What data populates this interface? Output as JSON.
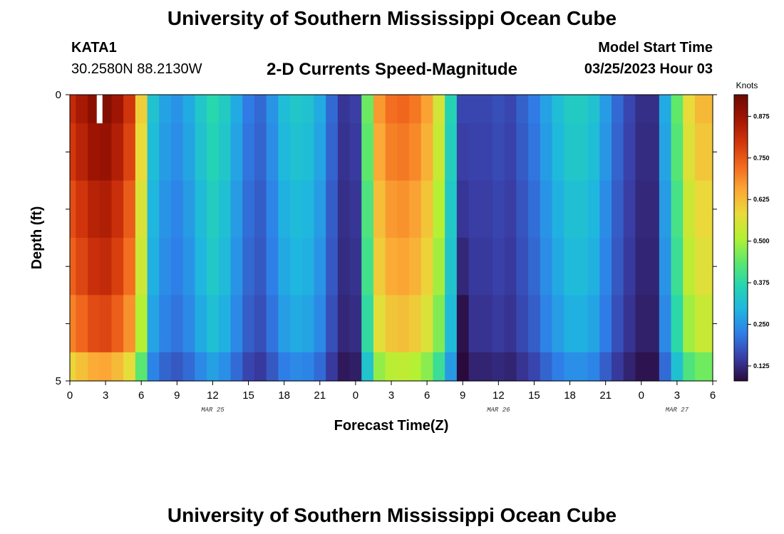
{
  "page": {
    "title": "University of Southern Mississippi Ocean Cube",
    "station_id": "KATA1",
    "coordinates": "30.2580N  88.2130W",
    "start_label": "Model Start Time",
    "start_value": "03/25/2023 Hour 03",
    "footer_title": "University of Southern Mississippi Ocean Cube"
  },
  "chart_data": {
    "type": "heatmap",
    "title": "2-D Currents Speed-Magnitude",
    "xlabel": "Forecast Time(Z)",
    "ylabel": "Depth (ft)",
    "x_range_hours": [
      0,
      54
    ],
    "y_range": [
      0,
      5
    ],
    "y_ticks": [
      "0",
      "5"
    ],
    "x_tick_labels": [
      "0",
      "3",
      "6",
      "9",
      "12",
      "15",
      "18",
      "21",
      "0",
      "3",
      "6",
      "9",
      "12",
      "15",
      "18",
      "21",
      "0",
      "3",
      "6"
    ],
    "date_labels": [
      {
        "text": "MAR 25",
        "hour": 12
      },
      {
        "text": "MAR 26",
        "hour": 36
      },
      {
        "text": "MAR 27",
        "hour": 51
      }
    ],
    "colorbar": {
      "unit": "Knots",
      "min": 0.08,
      "max": 0.94,
      "ticks": [
        "0.125",
        "0.250",
        "0.375",
        "0.500",
        "0.625",
        "0.750",
        "0.875"
      ],
      "colors": [
        "#2a0a3c",
        "#3a3fa8",
        "#2f7ee8",
        "#1fb6e0",
        "#25d6b0",
        "#5ee86b",
        "#b4f034",
        "#eadb3a",
        "#fba836",
        "#f26a1e",
        "#d2350c",
        "#a01503",
        "#6e0a02"
      ]
    },
    "depth_layers": [
      0.5,
      1.5,
      2.5,
      3.5,
      4.5,
      5.0
    ],
    "time_hours": [
      0,
      1,
      2,
      3,
      4,
      5,
      6,
      7,
      8,
      9,
      10,
      11,
      12,
      13,
      14,
      15,
      16,
      17,
      18,
      19,
      20,
      21,
      22,
      23,
      24,
      25,
      26,
      27,
      28,
      29,
      30,
      31,
      32,
      33,
      34,
      35,
      36,
      37,
      38,
      39,
      40,
      41,
      42,
      43,
      44,
      45,
      46,
      47,
      48,
      49,
      50,
      51,
      52,
      53,
      54
    ],
    "speed_profile": [
      0.82,
      0.86,
      0.9,
      0.91,
      0.87,
      0.8,
      0.6,
      0.32,
      0.27,
      0.25,
      0.28,
      0.33,
      0.37,
      0.34,
      0.28,
      0.22,
      0.2,
      0.25,
      0.31,
      0.33,
      0.32,
      0.28,
      0.2,
      0.14,
      0.15,
      0.45,
      0.67,
      0.72,
      0.73,
      0.71,
      0.66,
      0.55,
      0.36,
      0.2,
      0.16,
      0.16,
      0.17,
      0.16,
      0.19,
      0.22,
      0.27,
      0.31,
      0.34,
      0.34,
      0.32,
      0.26,
      0.2,
      0.16,
      0.13,
      0.13,
      0.28,
      0.44,
      0.58,
      0.63,
      0.63
    ],
    "depth_factors": [
      1.0,
      0.97,
      0.93,
      0.9,
      0.85,
      0.72
    ],
    "dip": {
      "hour": 33,
      "values": [
        0.16,
        0.15,
        0.14,
        0.12,
        0.09,
        0.05
      ]
    },
    "missing": {
      "hour": 2.5,
      "depth_start": 0,
      "depth_end": 0.5
    }
  }
}
